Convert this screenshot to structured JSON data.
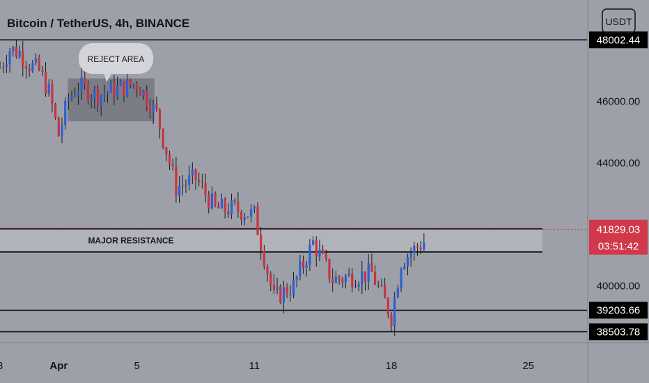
{
  "header": {
    "title": "Bitcoin / TetherUS, 4h, BINANCE",
    "currency_button": "USDT"
  },
  "colors": {
    "background": "#9da0a8",
    "up": "#2f5fd6",
    "down": "#c9343f",
    "level_line": "#000000",
    "level_label_bg": "#000000",
    "current_label_bg": "#d1394a",
    "axis_separator": "#7e8189"
  },
  "chart_data": {
    "type": "candlestick",
    "title": "Bitcoin / TetherUS, 4h, BINANCE",
    "y_axis": {
      "ticks": [
        "46000.00",
        "44000.00",
        "40000.00"
      ],
      "tick_values": [
        46000,
        44000,
        40000
      ],
      "range": [
        38150,
        49300
      ]
    },
    "x_axis": {
      "ticks": [
        "8",
        "Apr",
        "5",
        "11",
        "18",
        "25"
      ],
      "tick_dates": [
        "2022-03-29",
        "2022-04-01",
        "2022-04-05",
        "2022-04-11",
        "2022-04-18",
        "2022-04-25"
      ],
      "range": [
        "2022-03-29",
        "2022-04-28"
      ]
    },
    "levels": [
      {
        "value": 48002.44,
        "label": "48002.44"
      },
      {
        "value": 39203.66,
        "label": "39203.66"
      },
      {
        "value": 38503.78,
        "label": "38503.78"
      }
    ],
    "resistance_band": {
      "label": "MAJOR RESISTANCE",
      "high": 41850,
      "low": 41100
    },
    "reject_zone": {
      "label": "REJECT AREA",
      "high": 46750,
      "low": 45350,
      "start": "2022-04-01",
      "end": "2022-04-06"
    },
    "current_price": {
      "value": 41829.03,
      "label": "41829.03",
      "countdown": "03:51:42"
    },
    "candle_path": [
      {
        "date": "2022-03-29",
        "price": 47100
      },
      {
        "date": "2022-03-29",
        "price": 47700
      },
      {
        "date": "2022-03-30",
        "price": 47600
      },
      {
        "date": "2022-03-30",
        "price": 47200
      },
      {
        "date": "2022-03-31",
        "price": 47000
      },
      {
        "date": "2022-03-31",
        "price": 46300
      },
      {
        "date": "2022-04-01",
        "price": 44900
      },
      {
        "date": "2022-04-01",
        "price": 46100
      },
      {
        "date": "2022-04-02",
        "price": 46500
      },
      {
        "date": "2022-04-03",
        "price": 46200
      },
      {
        "date": "2022-04-04",
        "price": 46400
      },
      {
        "date": "2022-04-05",
        "price": 46600
      },
      {
        "date": "2022-04-06",
        "price": 45600
      },
      {
        "date": "2022-04-07",
        "price": 43200
      },
      {
        "date": "2022-04-08",
        "price": 43500
      },
      {
        "date": "2022-04-09",
        "price": 42500
      },
      {
        "date": "2022-04-10",
        "price": 42500
      },
      {
        "date": "2022-04-11",
        "price": 42300
      },
      {
        "date": "2022-04-12",
        "price": 39600
      },
      {
        "date": "2022-04-13",
        "price": 40000
      },
      {
        "date": "2022-04-14",
        "price": 41400
      },
      {
        "date": "2022-04-15",
        "price": 40200
      },
      {
        "date": "2022-04-16",
        "price": 40300
      },
      {
        "date": "2022-04-17",
        "price": 40400
      },
      {
        "date": "2022-04-18",
        "price": 39000
      },
      {
        "date": "2022-04-18",
        "price": 40800
      },
      {
        "date": "2022-04-19",
        "price": 41100
      },
      {
        "date": "2022-04-20",
        "price": 41600
      },
      {
        "date": "2022-04-21",
        "price": 41829
      }
    ]
  }
}
